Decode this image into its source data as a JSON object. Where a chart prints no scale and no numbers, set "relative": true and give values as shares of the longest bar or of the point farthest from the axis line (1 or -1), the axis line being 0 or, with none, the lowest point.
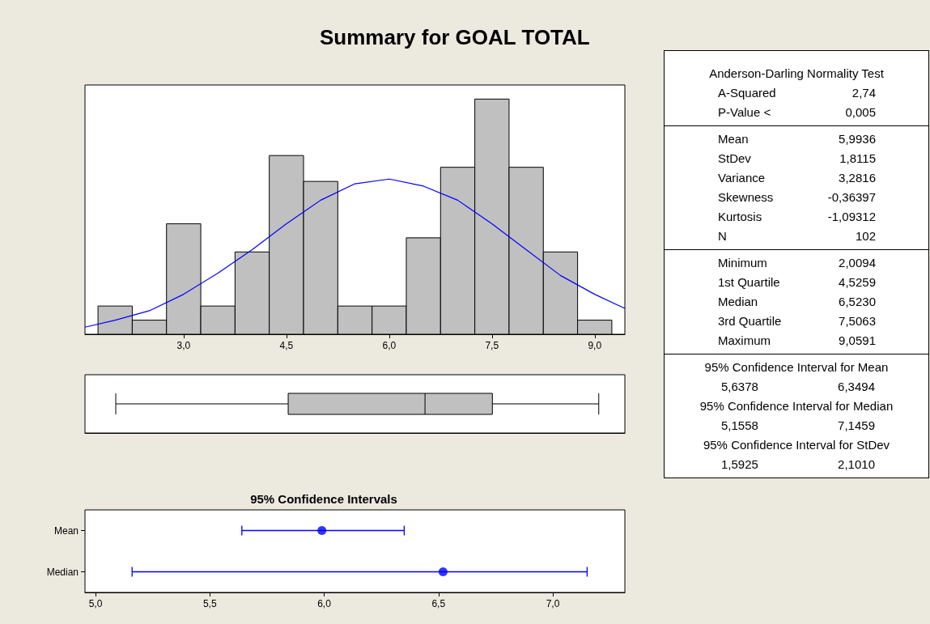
{
  "chart_data": [
    {
      "type": "histogram",
      "title": "Summary for GOAL TOTAL",
      "relative": true,
      "bins": [
        1.75,
        2.25,
        2.75,
        3.25,
        3.75,
        4.25,
        4.75,
        5.25,
        5.75,
        6.25,
        6.75,
        7.25,
        7.75,
        8.25,
        8.75,
        9.25
      ],
      "xlim": [
        1.56,
        9.44
      ],
      "xticks": [
        {
          "value": 3,
          "label": "3,0"
        },
        {
          "value": 4.5,
          "label": "4,5"
        },
        {
          "value": 6,
          "label": "6,0"
        },
        {
          "value": 7.5,
          "label": "7,5"
        },
        {
          "value": 9,
          "label": "9,0"
        }
      ],
      "series": [
        {
          "type": "histogram",
          "color": "#c0c0c0",
          "values": [
            0.12,
            0.06,
            0.47,
            0.12,
            0.35,
            0.76,
            0.65,
            0.12,
            0.12,
            0.41,
            0.71,
            1,
            0.71,
            0.35,
            0.06
          ]
        },
        {
          "type": "line",
          "color": "#0000ff",
          "marker": "none",
          "x": [
            1.56,
            2,
            2.5,
            3,
            3.5,
            4,
            4.5,
            5,
            5.5,
            6,
            6.5,
            7,
            7.5,
            8,
            8.5,
            9,
            9.44
          ],
          "values": [
            0.03,
            0.06,
            0.1,
            0.17,
            0.26,
            0.36,
            0.47,
            0.57,
            0.64,
            0.66,
            0.63,
            0.57,
            0.47,
            0.36,
            0.25,
            0.17,
            0.11
          ]
        }
      ]
    },
    {
      "type": "box",
      "orientation": "horizontal",
      "categories": [
        null
      ],
      "color": "#c0c0c0",
      "xlim": [
        1.56,
        9.44
      ],
      "boxes": [
        {
          "low": 2.0094,
          "q1": 4.5259,
          "median": 6.523,
          "q3": 7.5063,
          "high": 9.0591
        }
      ]
    },
    {
      "type": "scatter",
      "title": "95% Confidence Intervals",
      "orientation": "horizontal",
      "categories": [
        "Mean",
        "Median"
      ],
      "values": [
        5.99,
        6.52
      ],
      "errors": [
        [
          5.64,
          6.35
        ],
        [
          5.16,
          7.15
        ]
      ],
      "color": "#0000ff",
      "marker": "circle",
      "xlim": [
        4.954,
        7.315
      ],
      "xticks": [
        {
          "value": 5,
          "label": "5,0"
        },
        {
          "value": 5.5,
          "label": "5,5"
        },
        {
          "value": 6,
          "label": "6,0"
        },
        {
          "value": 6.5,
          "label": "6,5"
        },
        {
          "value": 7,
          "label": "7,0"
        }
      ]
    },
    {
      "type": "other",
      "annotations": [
        "Anderson-Darling Normality Test",
        "A-Squared",
        "2,74",
        "P-Value <",
        "0,005",
        "Mean",
        "5,9936",
        "StDev",
        "1,8115",
        "Variance",
        "3,2816",
        "Skewness",
        "-0,36397",
        "Kurtosis",
        "-1,09312",
        "N",
        "102",
        "Minimum",
        "2,0094",
        "1st Quartile",
        "4,5259",
        "Median",
        "6,5230",
        "3rd Quartile",
        "7,5063",
        "Maximum",
        "9,0591",
        "95% Confidence Interval for Mean",
        "5,6378",
        "6,3494",
        "95% Confidence Interval for Median",
        "5,1558",
        "7,1459",
        "95% Confidence Interval for StDev",
        "1,5925",
        "2,1010"
      ]
    }
  ]
}
